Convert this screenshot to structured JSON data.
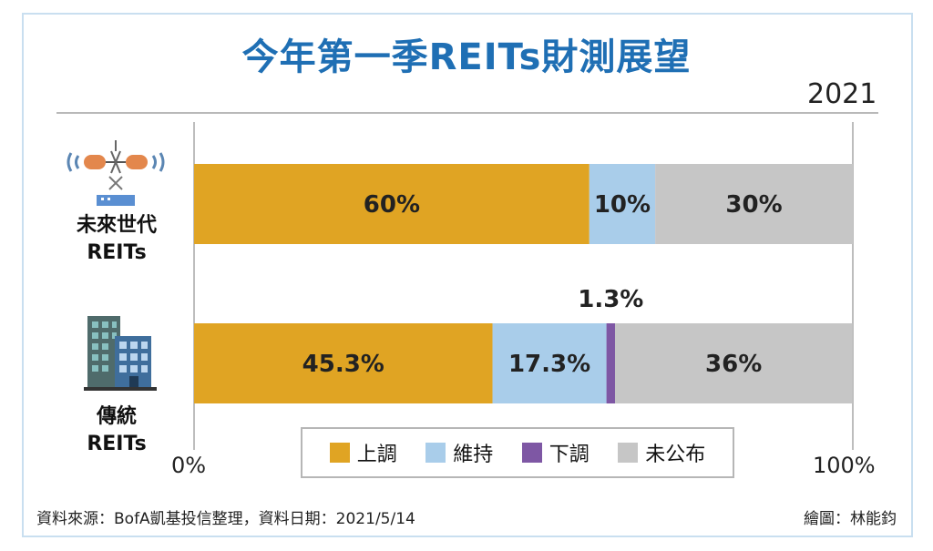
{
  "title": "今年第一季REITs財測展望",
  "year": "2021",
  "source": "資料來源：BofA凱基投信整理，資料日期：2021/5/14",
  "credit": "繪圖：林能鈞",
  "colors": {
    "up": "#e0a423",
    "hold": "#a9cdea",
    "down": "#7e57a4",
    "none": "#c6c6c6",
    "title": "#1f6fb4"
  },
  "icons": [
    "satellite-icon",
    "building-icon"
  ],
  "chart_data": {
    "type": "bar",
    "orientation": "horizontal",
    "stacked": true,
    "categories": [
      {
        "line1": "未來世代",
        "line2": "REITs"
      },
      {
        "line1": "傳統",
        "line2": "REITs"
      }
    ],
    "series": [
      {
        "name": "上調",
        "key": "up",
        "values": [
          60,
          45.3
        ],
        "labels": [
          "60%",
          "45.3%"
        ]
      },
      {
        "name": "維持",
        "key": "hold",
        "values": [
          10,
          17.3
        ],
        "labels": [
          "10%",
          "17.3%"
        ]
      },
      {
        "name": "下調",
        "key": "down",
        "values": [
          0,
          1.3
        ],
        "labels": [
          "",
          "1.3%"
        ]
      },
      {
        "name": "未公布",
        "key": "none",
        "values": [
          30,
          36
        ],
        "labels": [
          "30%",
          "36%"
        ]
      }
    ],
    "xlim": [
      0,
      100
    ],
    "ticks": [
      "0%",
      "100%"
    ],
    "legend": "bottom-center",
    "grid": false
  }
}
